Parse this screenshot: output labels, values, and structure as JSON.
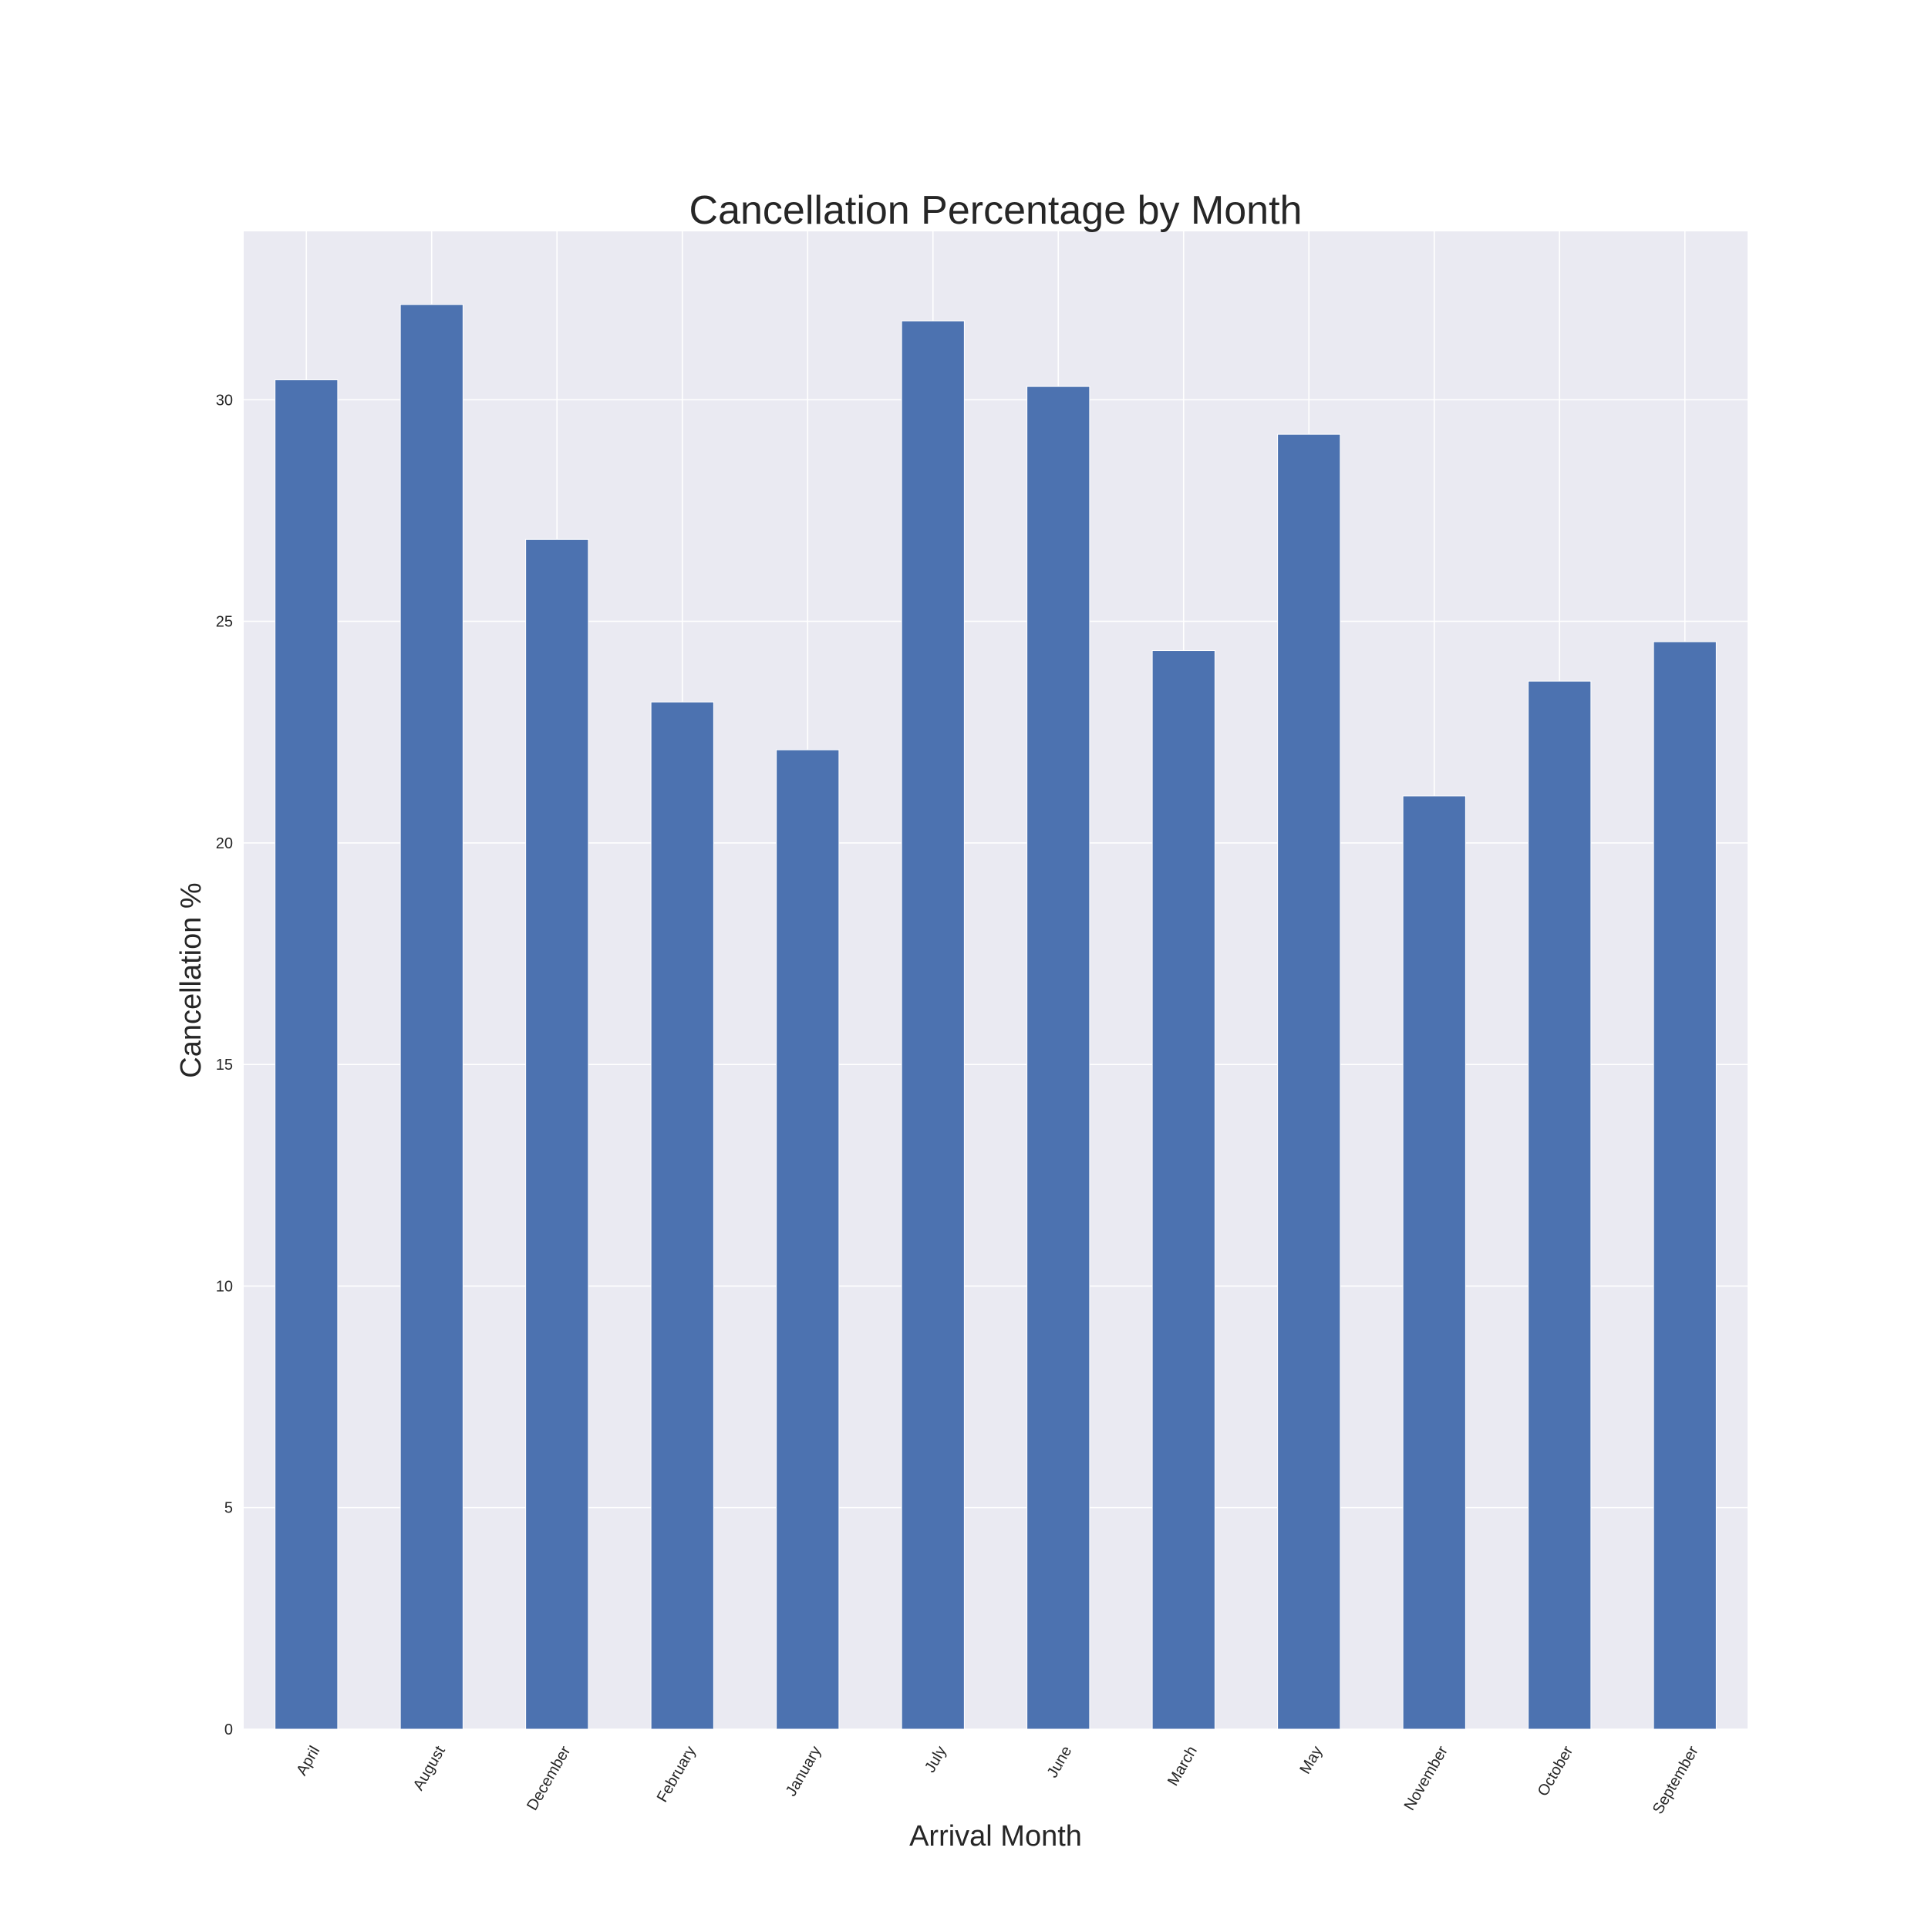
{
  "chart_data": {
    "type": "bar",
    "title": "Cancellation Percentage by Month",
    "xlabel": "Arrival Month",
    "ylabel": "Cancellation %",
    "categories": [
      "April",
      "August",
      "December",
      "February",
      "January",
      "July",
      "June",
      "March",
      "May",
      "November",
      "October",
      "September"
    ],
    "values": [
      30.45,
      32.15,
      26.85,
      23.18,
      22.1,
      31.78,
      30.3,
      24.34,
      29.22,
      21.06,
      23.65,
      24.54
    ],
    "ylim": [
      0,
      33.8
    ],
    "yticks": [
      0,
      5,
      10,
      15,
      20,
      25,
      30
    ],
    "grid": true,
    "legend": "none",
    "colors": {
      "bar": "#4c72b0",
      "plot_background": "#eaeaf2",
      "grid": "#ffffff",
      "text": "#262626"
    }
  }
}
